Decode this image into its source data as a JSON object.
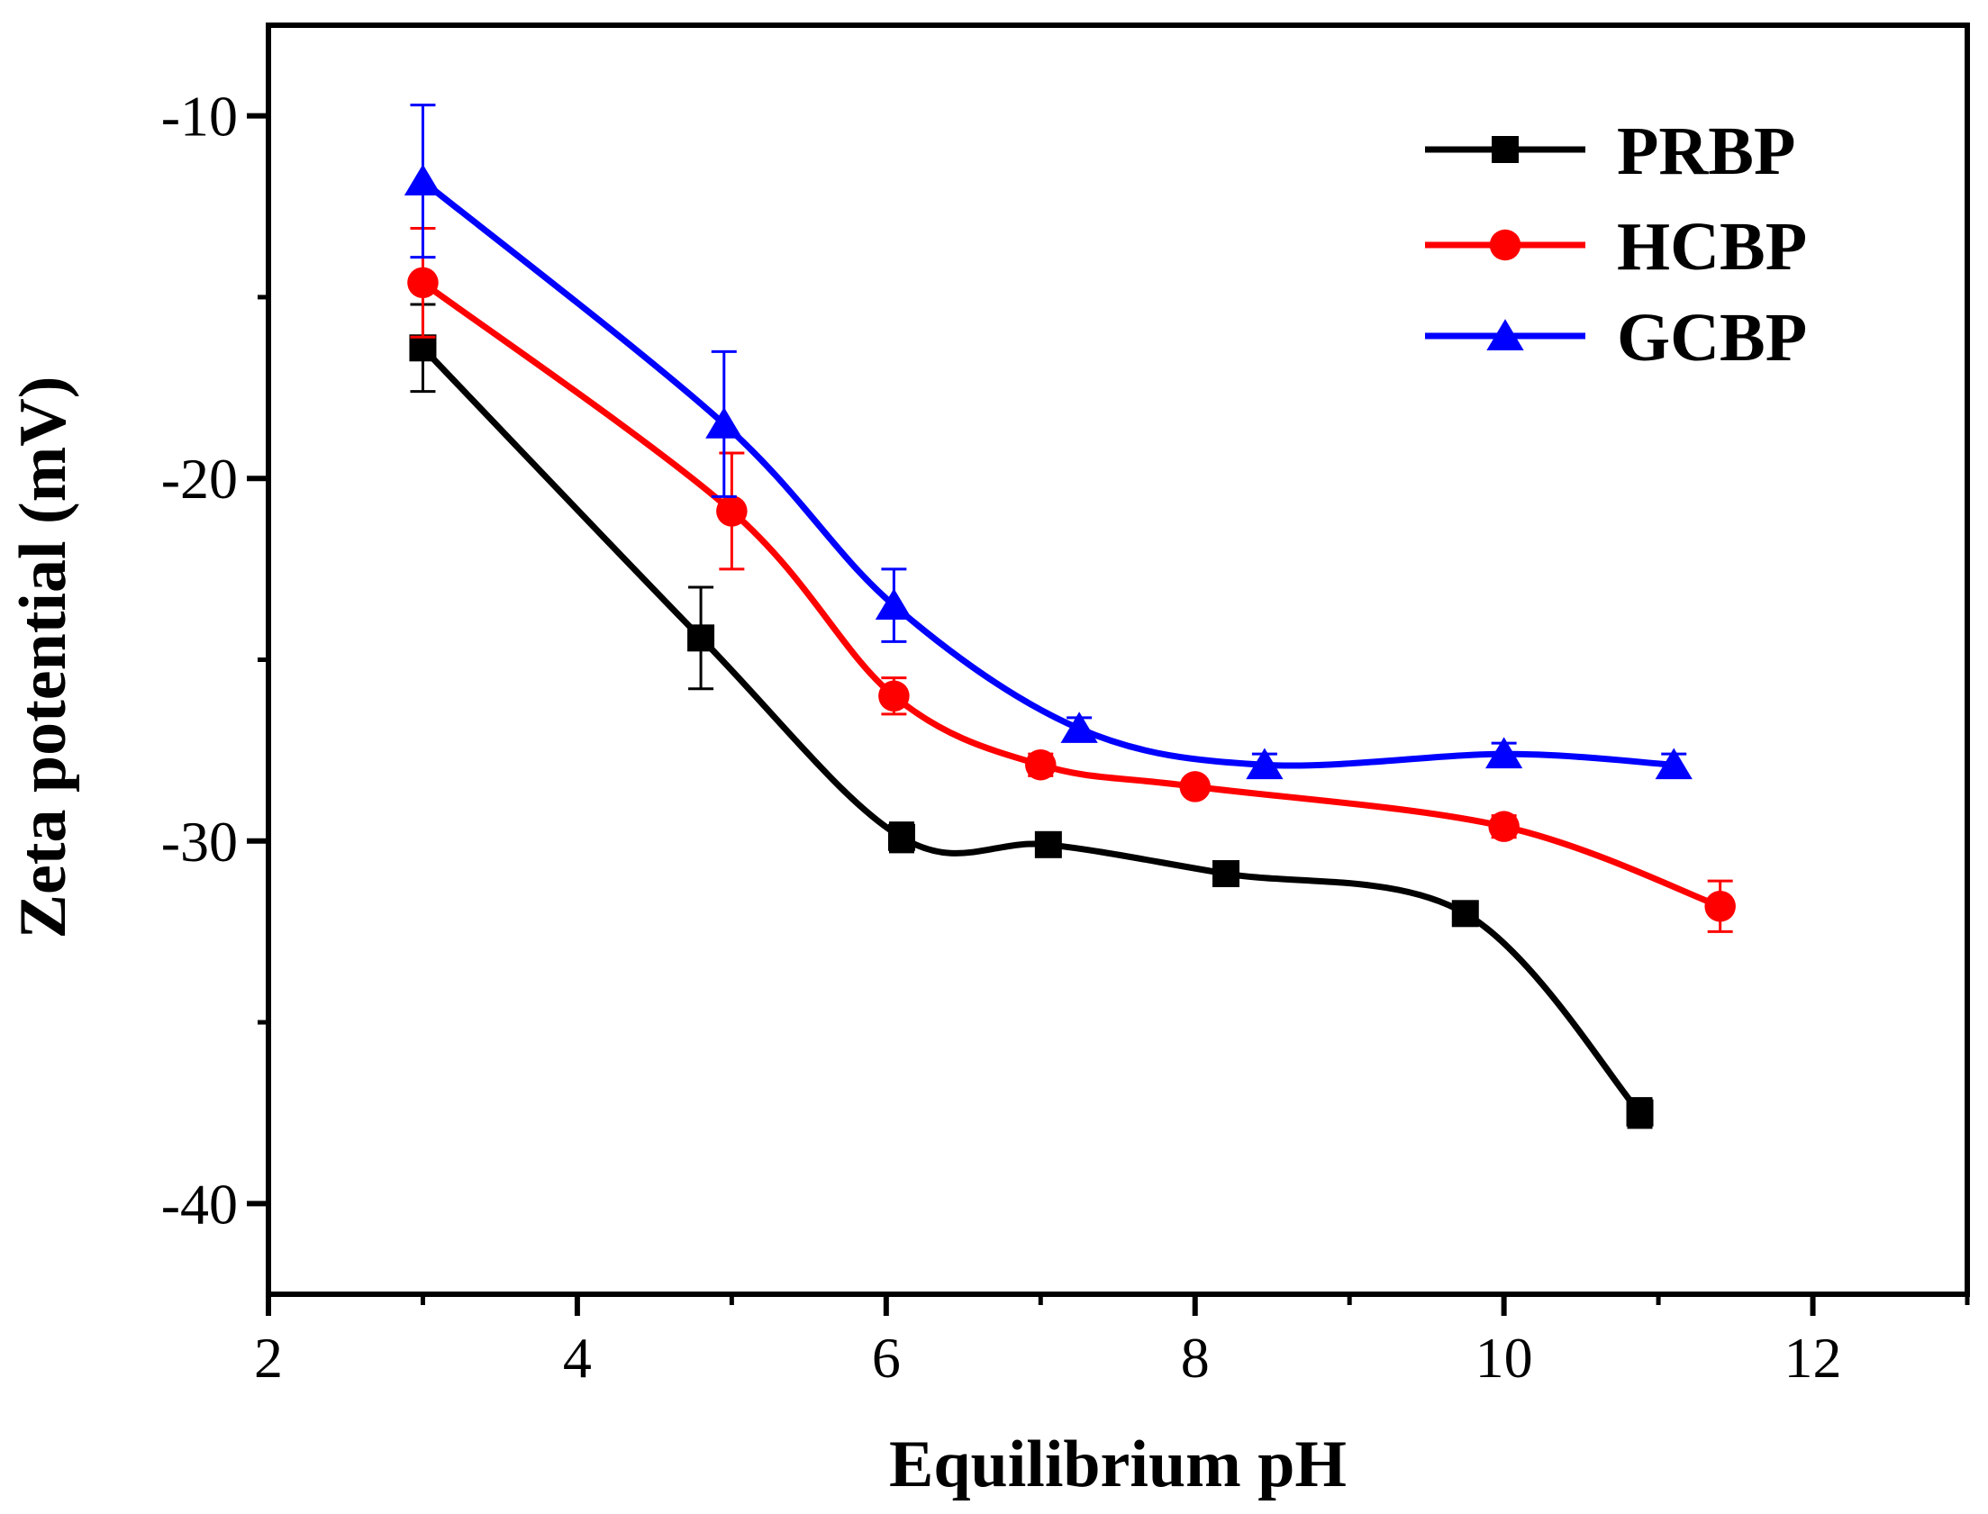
{
  "chart_data": {
    "type": "line",
    "xlabel": "Equilibrium pH",
    "ylabel": "Zeta potential (mV)",
    "xlim": [
      2,
      13
    ],
    "ylim": [
      -42.5,
      -7.5
    ],
    "xticks": [
      2,
      4,
      6,
      8,
      10,
      12
    ],
    "yticks": [
      -10,
      -20,
      -30,
      -40
    ],
    "grid": false,
    "legend_position": "top-right",
    "series": [
      {
        "name": "PRBP",
        "color": "#000000",
        "marker": "square",
        "x": [
          3.0,
          4.8,
          6.1,
          7.05,
          8.2,
          9.75,
          10.88
        ],
        "y": [
          -16.4,
          -24.4,
          -29.9,
          -30.1,
          -30.9,
          -32.0,
          -37.5
        ],
        "yerr": [
          1.2,
          1.4,
          0.4,
          0.2,
          0.2,
          0.2,
          0.4
        ]
      },
      {
        "name": "HCBP",
        "color": "#ff0000",
        "marker": "circle",
        "x": [
          3.0,
          5.0,
          6.05,
          7.0,
          8.0,
          10.0,
          11.4
        ],
        "y": [
          -14.6,
          -20.9,
          -26.0,
          -27.9,
          -28.5,
          -29.6,
          -31.8
        ],
        "yerr": [
          1.5,
          1.6,
          0.5,
          0.3,
          0.2,
          0.3,
          0.7
        ]
      },
      {
        "name": "GCBP",
        "color": "#0000ff",
        "marker": "triangle",
        "x": [
          3.0,
          4.95,
          6.05,
          7.25,
          8.45,
          10.0,
          11.1
        ],
        "y": [
          -11.8,
          -18.5,
          -23.5,
          -26.9,
          -27.9,
          -27.6,
          -27.9
        ],
        "yerr": [
          2.1,
          2.0,
          1.0,
          0.3,
          0.3,
          0.3,
          0.3
        ]
      }
    ]
  }
}
